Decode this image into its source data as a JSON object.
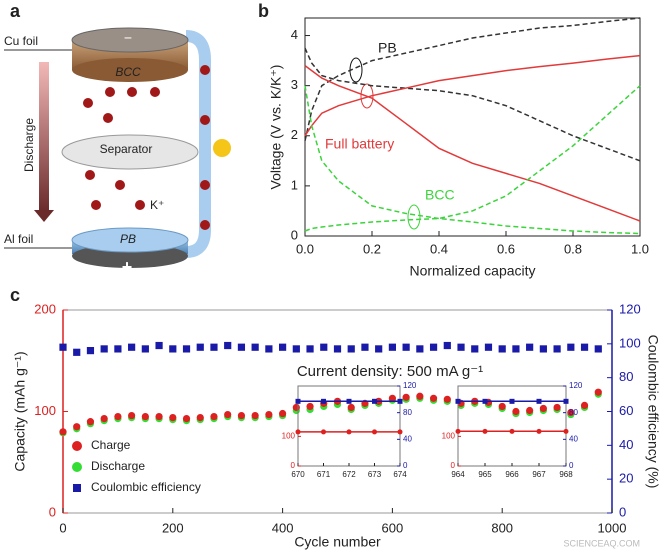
{
  "panel_labels": [
    "a",
    "b",
    "c"
  ],
  "schematic": {
    "top_label": "Cu foil",
    "top_electrode": "BCC",
    "top_sign": "−",
    "arrow_label": "Discharge",
    "separator": "Separator",
    "ion": "K⁺",
    "bottom_label": "Al foil",
    "bottom_electrode": "PB",
    "bottom_sign": "+"
  },
  "watermark": "SCIENCEAQ.COM",
  "chart_data": [
    {
      "type": "line",
      "xlabel": "Normalized capacity",
      "ylabel": "Voltage (V vs. K/K⁺)",
      "annotations": [
        "PB",
        "Full battery",
        "BCC"
      ],
      "x": [
        0,
        0.02,
        0.05,
        0.1,
        0.2,
        0.3,
        0.4,
        0.5,
        0.6,
        0.7,
        0.8,
        0.9,
        1.0
      ],
      "series": [
        {
          "color": "#333333",
          "dashed": true,
          "values": [
            3.75,
            3.45,
            3.2,
            3.1,
            3.0,
            2.95,
            2.9,
            2.8,
            2.6,
            2.3,
            2.0,
            1.75,
            1.5
          ]
        },
        {
          "color": "#333333",
          "dashed": true,
          "values": [
            1.9,
            2.5,
            3.0,
            3.2,
            3.5,
            3.65,
            3.8,
            3.95,
            4.05,
            4.15,
            4.2,
            4.28,
            4.35
          ]
        },
        {
          "color": "#e23a3a",
          "dashed": false,
          "values": [
            3.4,
            3.3,
            3.15,
            3.0,
            2.75,
            2.25,
            1.75,
            1.45,
            1.25,
            1.05,
            0.8,
            0.55,
            0.3
          ]
        },
        {
          "color": "#e23a3a",
          "dashed": false,
          "values": [
            2.0,
            2.2,
            2.45,
            2.6,
            2.8,
            2.95,
            3.1,
            3.2,
            3.3,
            3.38,
            3.45,
            3.53,
            3.6
          ]
        },
        {
          "color": "#3bd43b",
          "dashed": true,
          "values": [
            3.0,
            2.2,
            1.5,
            1.1,
            0.6,
            0.45,
            0.35,
            0.28,
            0.2,
            0.15,
            0.1,
            0.07,
            0.05
          ]
        },
        {
          "color": "#3bd43b",
          "dashed": true,
          "values": [
            0.1,
            0.15,
            0.18,
            0.22,
            0.28,
            0.32,
            0.35,
            0.5,
            0.8,
            1.3,
            1.8,
            2.4,
            3.0
          ]
        }
      ],
      "xlim": [
        0,
        1.0
      ],
      "xticks": [
        {
          "value": 0,
          "label": "0.0"
        },
        0.2,
        0.4,
        0.6,
        0.8,
        {
          "value": 1,
          "label": "1.0"
        }
      ],
      "ylim": [
        0,
        4.35
      ],
      "yticks": [
        0,
        1,
        2,
        3,
        4
      ]
    },
    {
      "type": "scatter",
      "xlabel": "Cycle number",
      "ylabel": "Capacity (mAh g⁻¹)",
      "y2label": "Coulombic efficiency (%)",
      "annotation": "Current density: 500 mA g⁻¹",
      "legend": "lower left",
      "x": [
        0,
        25,
        50,
        75,
        100,
        125,
        150,
        175,
        200,
        225,
        250,
        275,
        300,
        325,
        350,
        375,
        400,
        425,
        450,
        475,
        500,
        525,
        550,
        575,
        600,
        625,
        650,
        675,
        700,
        725,
        750,
        775,
        800,
        825,
        850,
        875,
        900,
        925,
        950,
        975
      ],
      "series": [
        {
          "name": "Discharge",
          "color": "#33dd33",
          "marker": "circle",
          "values": [
            79,
            83,
            88,
            91,
            93,
            94,
            93,
            93,
            92,
            91,
            92,
            93,
            95,
            94,
            94,
            95,
            96,
            101,
            102,
            105,
            107,
            102,
            106,
            108,
            111,
            112,
            113,
            111,
            110,
            106,
            108,
            107,
            103,
            98,
            99,
            101,
            102,
            97,
            104,
            117
          ]
        },
        {
          "name": "Charge",
          "color": "#dd2020",
          "marker": "circle",
          "values": [
            80,
            85,
            90,
            93,
            95,
            96,
            95,
            95,
            94,
            93,
            94,
            95,
            97,
            96,
            96,
            97,
            98,
            104,
            105,
            108,
            110,
            104,
            108,
            110,
            113,
            114,
            115,
            113,
            112,
            108,
            110,
            109,
            105,
            100,
            101,
            103,
            104,
            99,
            106,
            119
          ]
        },
        {
          "name": "Coulombic efficiency",
          "color": "#1a1aa8",
          "marker": "square",
          "axis": "y2",
          "values": [
            98,
            95,
            96,
            97,
            97,
            98,
            97,
            99,
            97,
            97,
            98,
            98,
            99,
            98,
            98,
            97,
            98,
            97,
            97,
            98,
            97,
            97,
            98,
            97,
            98,
            98,
            97,
            98,
            99,
            98,
            97,
            98,
            97,
            97,
            98,
            97,
            97,
            98,
            98,
            97
          ]
        }
      ],
      "xlim": [
        0,
        1000
      ],
      "xticks": [
        0,
        200,
        400,
        600,
        800,
        1000
      ],
      "ylim": [
        0,
        200
      ],
      "yticks": [
        0,
        100,
        200
      ],
      "ycolor": "#dd2020",
      "y2lim": [
        0,
        120
      ],
      "y2ticks": [
        0,
        20,
        40,
        60,
        80,
        100,
        120
      ],
      "y2color": "#1a1aa8"
    },
    {
      "type": "line",
      "x": [
        670,
        671,
        672,
        673,
        674
      ],
      "series": [
        {
          "color": "#dd2020",
          "marker": "circle",
          "values": [
            115,
            115,
            115,
            115,
            115
          ]
        },
        {
          "color": "#1a1aa8",
          "marker": "square",
          "axis": "y2",
          "values": [
            97,
            97,
            97,
            97,
            97
          ]
        }
      ],
      "xlim": [
        670,
        674
      ],
      "xticks": [
        670,
        671,
        672,
        673,
        674
      ],
      "ylim": [
        0,
        270
      ],
      "yticks": [
        0,
        100
      ],
      "y2lim": [
        0,
        120
      ],
      "y2ticks": [
        0,
        40,
        80,
        120
      ]
    },
    {
      "type": "line",
      "x": [
        964,
        965,
        966,
        967,
        968
      ],
      "series": [
        {
          "color": "#dd2020",
          "marker": "circle",
          "values": [
            117,
            117,
            117,
            117,
            117
          ]
        },
        {
          "color": "#1a1aa8",
          "marker": "square",
          "axis": "y2",
          "values": [
            97,
            97,
            97,
            97,
            97
          ]
        }
      ],
      "xlim": [
        964,
        968
      ],
      "xticks": [
        964,
        965,
        966,
        967,
        968
      ],
      "ylim": [
        0,
        270
      ],
      "yticks": [
        0,
        100
      ],
      "y2lim": [
        0,
        120
      ],
      "y2ticks": [
        0,
        40,
        80,
        120
      ]
    }
  ]
}
